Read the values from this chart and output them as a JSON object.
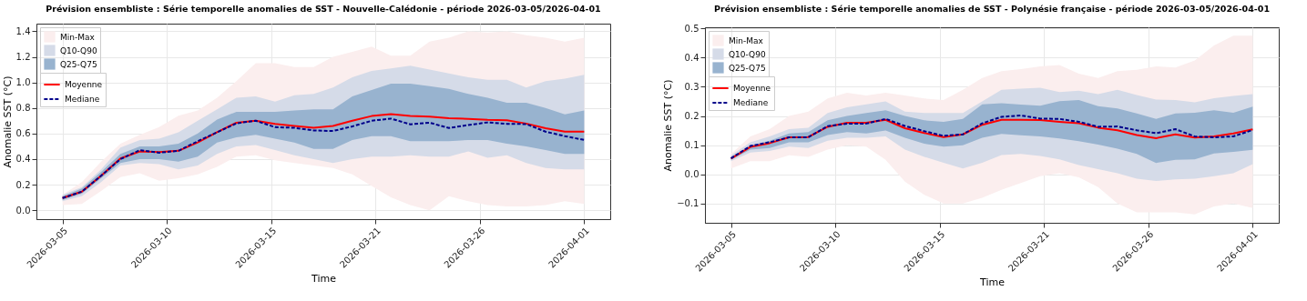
{
  "chart_data": [
    {
      "type": "line",
      "title": "Prévision ensembliste : Série temporelle anomalies de SST - Nouvelle-Calédonie - période 2026-03-05/2026-04-01",
      "xlabel": "Time",
      "ylabel": "Anomalie SST (°C)",
      "grid": true,
      "legend": "top left",
      "x": [
        "2026-03-05",
        "2026-03-06",
        "2026-03-07",
        "2026-03-08",
        "2026-03-09",
        "2026-03-10",
        "2026-03-11",
        "2026-03-12",
        "2026-03-13",
        "2026-03-14",
        "2026-03-15",
        "2026-03-16",
        "2026-03-17",
        "2026-03-18",
        "2026-03-19",
        "2026-03-20",
        "2026-03-21",
        "2026-03-22",
        "2026-03-23",
        "2026-03-24",
        "2026-03-25",
        "2026-03-26",
        "2026-03-27",
        "2026-03-28",
        "2026-03-29",
        "2026-03-30",
        "2026-03-31",
        "2026-04-01"
      ],
      "xlim": [
        "2026-03-03T15:36",
        "2026-04-02T08:24"
      ],
      "xticks": [
        {
          "value": "2026-03-05",
          "label": "2026-03-05"
        },
        {
          "value": "2026-03-10T09:36",
          "label": "2026-03-10"
        },
        {
          "value": "2026-03-15T19:12",
          "label": "2026-03-15"
        },
        {
          "value": "2026-03-21T04:48",
          "label": "2026-03-21"
        },
        {
          "value": "2026-03-26T14:24",
          "label": "2026-03-26"
        },
        {
          "value": "2026-04-01",
          "label": "2026-04-01"
        }
      ],
      "ylim": [
        -0.07,
        1.46
      ],
      "yticks": [
        {
          "value": 0,
          "label": "0.0"
        },
        0.2,
        0.4,
        0.6,
        0.8,
        {
          "value": 1,
          "label": "1.0"
        },
        1.2,
        1.4
      ],
      "series": [
        {
          "name": "Min-Max",
          "type": "area",
          "color": "#fbeeee",
          "values": [
            null,
            null,
            null,
            null,
            null,
            null,
            null,
            null,
            null,
            null,
            null,
            null,
            null,
            null,
            null,
            null,
            null,
            null,
            null,
            null,
            null,
            null,
            null,
            null,
            null,
            null,
            null,
            null
          ],
          "lower": [
            0.04,
            0.05,
            0.15,
            0.26,
            0.29,
            0.23,
            0.25,
            0.28,
            0.34,
            0.42,
            0.43,
            0.39,
            0.37,
            0.35,
            0.33,
            0.28,
            0.19,
            0.1,
            0.04,
            0.0,
            0.11,
            0.07,
            0.04,
            0.03,
            0.03,
            0.04,
            0.07,
            0.05
          ],
          "upper": [
            0.12,
            0.22,
            0.38,
            0.52,
            0.59,
            0.65,
            0.74,
            0.78,
            0.88,
            1.01,
            1.15,
            1.15,
            1.12,
            1.12,
            1.2,
            1.24,
            1.28,
            1.21,
            1.21,
            1.32,
            1.35,
            1.4,
            1.39,
            1.4,
            1.37,
            1.35,
            1.32,
            1.35
          ]
        },
        {
          "name": "Q10-Q90",
          "type": "area",
          "color": "#d5dbe8",
          "values": [
            null,
            null,
            null,
            null,
            null,
            null,
            null,
            null,
            null,
            null,
            null,
            null,
            null,
            null,
            null,
            null,
            null,
            null,
            null,
            null,
            null,
            null,
            null,
            null,
            null,
            null,
            null,
            null
          ],
          "lower": [
            0.07,
            0.11,
            0.22,
            0.35,
            0.37,
            0.36,
            0.32,
            0.35,
            0.44,
            0.5,
            0.51,
            0.47,
            0.43,
            0.4,
            0.37,
            0.4,
            0.42,
            0.42,
            0.43,
            0.42,
            0.42,
            0.46,
            0.41,
            0.43,
            0.37,
            0.33,
            0.32,
            0.32
          ],
          "upper": [
            0.12,
            0.18,
            0.32,
            0.49,
            0.55,
            0.56,
            0.61,
            0.7,
            0.79,
            0.88,
            0.89,
            0.85,
            0.9,
            0.91,
            0.96,
            1.04,
            1.09,
            1.11,
            1.13,
            1.1,
            1.07,
            1.04,
            1.02,
            1.02,
            0.96,
            1.01,
            1.03,
            1.06
          ]
        },
        {
          "name": "Q25-Q75",
          "type": "area",
          "color": "#98b3cf",
          "values": [
            null,
            null,
            null,
            null,
            null,
            null,
            null,
            null,
            null,
            null,
            null,
            null,
            null,
            null,
            null,
            null,
            null,
            null,
            null,
            null,
            null,
            null,
            null,
            null,
            null,
            null,
            null,
            null
          ],
          "lower": [
            0.08,
            0.13,
            0.25,
            0.37,
            0.4,
            0.4,
            0.38,
            0.42,
            0.53,
            0.57,
            0.59,
            0.56,
            0.53,
            0.48,
            0.48,
            0.55,
            0.58,
            0.58,
            0.54,
            0.54,
            0.54,
            0.55,
            0.55,
            0.52,
            0.5,
            0.47,
            0.44,
            0.44
          ],
          "upper": [
            0.11,
            0.17,
            0.3,
            0.44,
            0.5,
            0.5,
            0.52,
            0.6,
            0.71,
            0.77,
            0.77,
            0.77,
            0.78,
            0.79,
            0.79,
            0.89,
            0.94,
            0.99,
            0.99,
            0.97,
            0.95,
            0.91,
            0.88,
            0.84,
            0.84,
            0.8,
            0.75,
            0.78
          ]
        },
        {
          "name": "Moyenne",
          "color": "#ff0000",
          "line_style": "solid",
          "values": [
            0.095,
            0.145,
            0.27,
            0.405,
            0.46,
            0.455,
            0.465,
            0.53,
            0.61,
            0.685,
            0.7,
            0.675,
            0.66,
            0.645,
            0.66,
            0.7,
            0.737,
            0.752,
            0.737,
            0.733,
            0.72,
            0.715,
            0.707,
            0.704,
            0.678,
            0.641,
            0.615,
            0.615
          ]
        },
        {
          "name": "Mediane",
          "color": "#00008b",
          "line_style": "dashed",
          "values": [
            0.095,
            0.145,
            0.27,
            0.4,
            0.47,
            0.45,
            0.465,
            0.54,
            0.61,
            0.68,
            0.7,
            0.65,
            0.645,
            0.624,
            0.62,
            0.656,
            0.7,
            0.717,
            0.672,
            0.685,
            0.643,
            0.667,
            0.687,
            0.676,
            0.674,
            0.615,
            0.58,
            0.55
          ]
        }
      ]
    },
    {
      "type": "line",
      "title": "Prévision ensembliste : Série temporelle anomalies de SST - Polynésie française - période 2026-03-05/2026-04-01",
      "xlabel": "Time",
      "ylabel": "Anomalie SST (°C)",
      "grid": true,
      "legend": "top left",
      "x": [
        "2026-03-05",
        "2026-03-06",
        "2026-03-07",
        "2026-03-08",
        "2026-03-09",
        "2026-03-10",
        "2026-03-11",
        "2026-03-12",
        "2026-03-13",
        "2026-03-14",
        "2026-03-15",
        "2026-03-16",
        "2026-03-17",
        "2026-03-18",
        "2026-03-19",
        "2026-03-20",
        "2026-03-21",
        "2026-03-22",
        "2026-03-23",
        "2026-03-24",
        "2026-03-25",
        "2026-03-26",
        "2026-03-27",
        "2026-03-28",
        "2026-03-29",
        "2026-03-30",
        "2026-03-31",
        "2026-04-01"
      ],
      "xlim": [
        "2026-03-03T15:36",
        "2026-04-02T08:24"
      ],
      "xticks": [
        {
          "value": "2026-03-05",
          "label": "2026-03-05"
        },
        {
          "value": "2026-03-10T09:36",
          "label": "2026-03-10"
        },
        {
          "value": "2026-03-15T19:12",
          "label": "2026-03-15"
        },
        {
          "value": "2026-03-21T04:48",
          "label": "2026-03-21"
        },
        {
          "value": "2026-03-26T14:24",
          "label": "2026-03-26"
        },
        {
          "value": "2026-04-01",
          "label": "2026-04-01"
        }
      ],
      "ylim": [
        -0.166,
        0.504
      ],
      "yticks": [
        {
          "value": -0.1,
          "label": "−0.1"
        },
        {
          "value": 0,
          "label": "0.0"
        },
        0.1,
        0.2,
        0.3,
        0.4,
        0.5
      ],
      "series": [
        {
          "name": "Min-Max",
          "type": "area",
          "color": "#fbeeee",
          "values": [
            null,
            null,
            null,
            null,
            null,
            null,
            null,
            null,
            null,
            null,
            null,
            null,
            null,
            null,
            null,
            null,
            null,
            null,
            null,
            null,
            null,
            null,
            null,
            null,
            null,
            null,
            null,
            null
          ],
          "lower": [
            0.02,
            0.045,
            0.045,
            0.065,
            0.06,
            0.085,
            0.1,
            0.095,
            0.05,
            -0.025,
            -0.07,
            -0.1,
            -0.1,
            -0.08,
            -0.053,
            -0.03,
            -0.006,
            0.004,
            -0.01,
            -0.044,
            -0.1,
            -0.13,
            -0.13,
            -0.13,
            -0.137,
            -0.11,
            -0.1,
            -0.115
          ],
          "upper": [
            0.07,
            0.13,
            0.155,
            0.2,
            0.215,
            0.26,
            0.28,
            0.27,
            0.28,
            0.27,
            0.26,
            0.255,
            0.29,
            0.33,
            0.354,
            0.361,
            0.37,
            0.375,
            0.345,
            0.33,
            0.354,
            0.358,
            0.37,
            0.366,
            0.39,
            0.442,
            0.475,
            0.475
          ]
        },
        {
          "name": "Q10-Q90",
          "type": "area",
          "color": "#d5dbe8",
          "values": [
            null,
            null,
            null,
            null,
            null,
            null,
            null,
            null,
            null,
            null,
            null,
            null,
            null,
            null,
            null,
            null,
            null,
            null,
            null,
            null,
            null,
            null,
            null,
            null,
            null,
            null,
            null,
            null
          ],
          "lower": [
            0.045,
            0.075,
            0.08,
            0.095,
            0.09,
            0.115,
            0.125,
            0.125,
            0.13,
            0.085,
            0.06,
            0.04,
            0.02,
            0.04,
            0.066,
            0.07,
            0.063,
            0.051,
            0.032,
            0.018,
            0.004,
            -0.015,
            -0.023,
            -0.017,
            -0.015,
            -0.006,
            0.004,
            0.035
          ],
          "upper": [
            0.065,
            0.11,
            0.13,
            0.155,
            0.16,
            0.21,
            0.23,
            0.24,
            0.25,
            0.215,
            0.21,
            0.21,
            0.21,
            0.25,
            0.29,
            0.294,
            0.297,
            0.282,
            0.287,
            0.275,
            0.29,
            0.272,
            0.256,
            0.255,
            0.247,
            0.261,
            0.269,
            0.275
          ]
        },
        {
          "name": "Q25-Q75",
          "type": "area",
          "color": "#98b3cf",
          "values": [
            null,
            null,
            null,
            null,
            null,
            null,
            null,
            null,
            null,
            null,
            null,
            null,
            null,
            null,
            null,
            null,
            null,
            null,
            null,
            null,
            null,
            null,
            null,
            null,
            null,
            null,
            null,
            null
          ],
          "lower": [
            0.05,
            0.085,
            0.09,
            0.11,
            0.11,
            0.135,
            0.145,
            0.14,
            0.15,
            0.125,
            0.105,
            0.095,
            0.1,
            0.125,
            0.139,
            0.134,
            0.13,
            0.123,
            0.114,
            0.102,
            0.088,
            0.07,
            0.039,
            0.05,
            0.051,
            0.072,
            0.077,
            0.084
          ],
          "upper": [
            0.06,
            0.1,
            0.115,
            0.14,
            0.145,
            0.185,
            0.2,
            0.21,
            0.22,
            0.2,
            0.185,
            0.18,
            0.19,
            0.24,
            0.244,
            0.239,
            0.235,
            0.251,
            0.255,
            0.234,
            0.226,
            0.209,
            0.19,
            0.209,
            0.211,
            0.22,
            0.211,
            0.232
          ]
        },
        {
          "name": "Moyenne",
          "color": "#ff0000",
          "line_style": "solid",
          "values": [
            0.054,
            0.094,
            0.107,
            0.127,
            0.128,
            0.163,
            0.177,
            0.177,
            0.187,
            0.158,
            0.142,
            0.128,
            0.137,
            0.17,
            0.187,
            0.187,
            0.186,
            0.18,
            0.175,
            0.16,
            0.151,
            0.135,
            0.124,
            0.137,
            0.126,
            0.13,
            0.14,
            0.154
          ]
        },
        {
          "name": "Mediane",
          "color": "#00008b",
          "line_style": "dashed",
          "values": [
            0.055,
            0.097,
            0.11,
            0.127,
            0.127,
            0.165,
            0.174,
            0.174,
            0.19,
            0.166,
            0.148,
            0.132,
            0.137,
            0.175,
            0.197,
            0.202,
            0.191,
            0.19,
            0.18,
            0.163,
            0.164,
            0.151,
            0.141,
            0.155,
            0.13,
            0.127,
            0.13,
            0.152
          ]
        }
      ]
    }
  ]
}
